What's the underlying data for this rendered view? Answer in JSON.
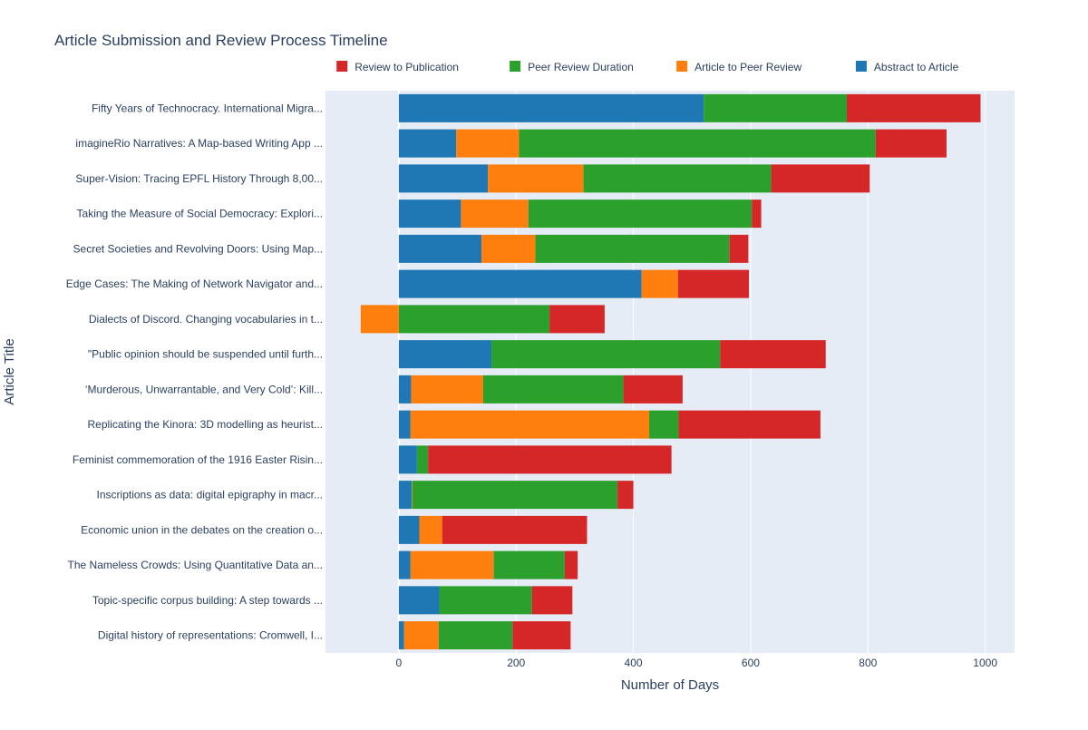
{
  "chart_data": {
    "type": "bar",
    "orientation": "horizontal",
    "barmode": "stack",
    "title": "Article Submission and Review Process Timeline",
    "xlabel": "Number of Days",
    "ylabel": "Article Title",
    "xlim": [
      -125,
      1050
    ],
    "xticks": [
      0,
      200,
      400,
      600,
      800,
      1000
    ],
    "grid": true,
    "legend_position": "top-right",
    "legend_order": [
      "Review to Publication",
      "Peer Review Duration",
      "Article to Peer Review",
      "Abstract to Article"
    ],
    "categories": [
      "Fifty Years of Technocracy. International Migra...",
      "imagineRio Narratives: A Map-based Writing App ...",
      "Super-Vision: Tracing EPFL History Through 8,00...",
      "Taking the Measure of Social Democracy: Explori...",
      "Secret Societies and Revolving Doors: Using Map...",
      "Edge Cases: The Making of Network Navigator and...",
      "Dialects of Discord. Changing vocabularies in t...",
      "\"Public opinion should be suspended until furth...",
      "‘Murderous, Unwarrantable, and Very Cold’: Kill...",
      "Replicating the Kinora: 3D modelling as heurist...",
      "Feminist commemoration of the 1916 Easter Risin...",
      "Inscriptions as data: digital epigraphy in macr...",
      "Economic union in the debates on the creation o...",
      "The Nameless Crowds: Using Quantitative Data an...",
      "Topic-specific corpus building: A step towards ...",
      "Digital history of representations: Cromwell, I..."
    ],
    "series": [
      {
        "name": "Abstract to Article",
        "color": "#1f77b4",
        "values": [
          520,
          98,
          152,
          106,
          141,
          414,
          0,
          158,
          21,
          20,
          31,
          22,
          35,
          20,
          69,
          9
        ]
      },
      {
        "name": "Article to Peer Review",
        "color": "#ff7f0e",
        "values": [
          0,
          107,
          163,
          115,
          92,
          62,
          -65,
          0,
          123,
          407,
          0,
          1,
          39,
          142,
          0,
          59
        ]
      },
      {
        "name": "Peer Review Duration",
        "color": "#2ca02c",
        "values": [
          244,
          608,
          320,
          381,
          331,
          0,
          257,
          390,
          239,
          50,
          19,
          350,
          0,
          121,
          158,
          126
        ]
      },
      {
        "name": "Review to Publication",
        "color": "#d62728",
        "values": [
          228,
          121,
          168,
          16,
          32,
          121,
          94,
          180,
          101,
          242,
          415,
          27,
          247,
          22,
          69,
          99
        ]
      }
    ]
  }
}
